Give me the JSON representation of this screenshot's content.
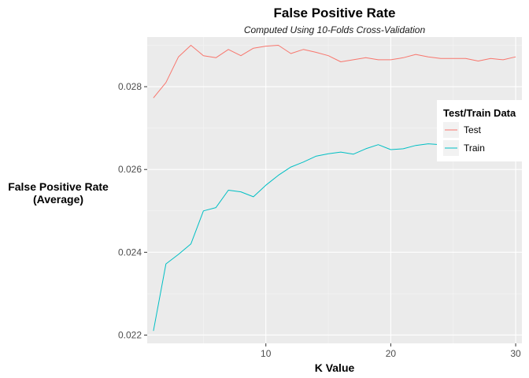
{
  "chart_data": {
    "type": "line",
    "title": "False Positive Rate",
    "subtitle": "Computed Using 10-Folds Cross-Validation",
    "xlabel": "K Value",
    "ylabel": [
      "False Positive Rate",
      "(Average)"
    ],
    "x_ticks": [
      10,
      20,
      30
    ],
    "y_ticks": [
      0.022,
      0.024,
      0.026,
      0.028
    ],
    "xlim": [
      0.5,
      30.5
    ],
    "ylim": [
      0.0218,
      0.0292
    ],
    "grid": true,
    "legend": {
      "title": "Test/Train Data",
      "position": "right"
    },
    "x": [
      1,
      2,
      3,
      4,
      5,
      6,
      7,
      8,
      9,
      10,
      11,
      12,
      13,
      14,
      15,
      16,
      17,
      18,
      19,
      20,
      21,
      22,
      23,
      24,
      25,
      26,
      27,
      28,
      29,
      30
    ],
    "series": [
      {
        "name": "Test",
        "color": "#F8766D",
        "values": [
          0.02773,
          0.0281,
          0.02872,
          0.029,
          0.02875,
          0.0287,
          0.0289,
          0.02875,
          0.02893,
          0.02898,
          0.029,
          0.0288,
          0.0289,
          0.02883,
          0.02875,
          0.0286,
          0.02865,
          0.0287,
          0.02865,
          0.02865,
          0.0287,
          0.02878,
          0.02872,
          0.02868,
          0.02868,
          0.02868,
          0.02862,
          0.02868,
          0.02865,
          0.02872
        ]
      },
      {
        "name": "Train",
        "color": "#00BFC4",
        "values": [
          0.0221,
          0.02372,
          0.02395,
          0.0242,
          0.025,
          0.02508,
          0.0255,
          0.02546,
          0.02534,
          0.02562,
          0.02586,
          0.02606,
          0.02618,
          0.02632,
          0.02638,
          0.02642,
          0.02637,
          0.0265,
          0.0266,
          0.02648,
          0.0265,
          0.02658,
          0.02662,
          0.0266,
          0.02665,
          0.02668,
          0.02665,
          0.02668,
          0.0267,
          0.02672
        ]
      }
    ]
  }
}
